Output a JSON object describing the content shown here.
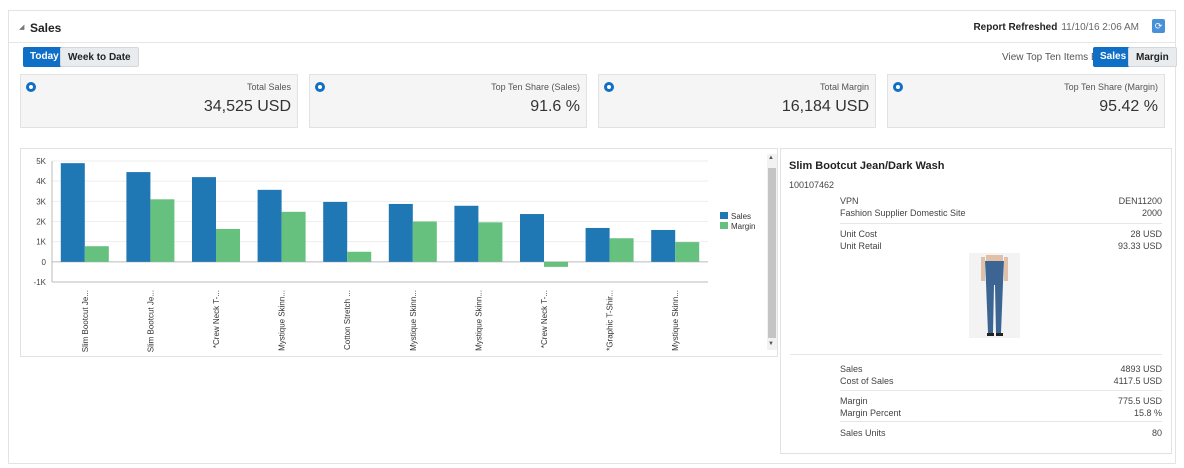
{
  "header": {
    "title": "Sales",
    "refreshed_label": "Report Refreshed",
    "refreshed_time": "11/10/16 2:06 AM",
    "refresh_icon": "refresh-icon"
  },
  "period": {
    "today": "Today",
    "week": "Week to Date",
    "selected": "Today"
  },
  "view_by": {
    "label": "View Top Ten Items By",
    "sales": "Sales",
    "margin": "Margin",
    "selected": "Sales"
  },
  "tiles": [
    {
      "label": "Total Sales",
      "value": "34,525 USD"
    },
    {
      "label": "Top Ten Share (Sales)",
      "value": "91.6 %"
    },
    {
      "label": "Total Margin",
      "value": "16,184 USD"
    },
    {
      "label": "Top Ten Share (Margin)",
      "value": "95.42 %"
    }
  ],
  "chart_data": {
    "type": "bar",
    "categories": [
      "Slim Bootcut Je...",
      "Slim Bootcut Je...",
      "*Crew Neck T-...",
      "Mystique Skinn...",
      "Cotton Stretch ...",
      "Mystique Skinn...",
      "Mystique Skinn...",
      "*Crew Neck T-...",
      "*Graphic T-Shir...",
      "Mystique Skinn..."
    ],
    "series": [
      {
        "name": "Sales",
        "color": "#1f77b4",
        "values": [
          4893,
          4450,
          4200,
          3570,
          2970,
          2870,
          2780,
          2370,
          1680,
          1580
        ]
      },
      {
        "name": "Margin",
        "color": "#66c17e",
        "values": [
          775.5,
          3100,
          1630,
          2480,
          500,
          2000,
          1960,
          -250,
          1170,
          980
        ]
      }
    ],
    "ylim": [
      -1000,
      5000
    ],
    "yticks": [
      "5K",
      "4K",
      "3K",
      "2K",
      "1K",
      "0",
      "-1K"
    ],
    "grid": true,
    "legend": "right"
  },
  "detail": {
    "title": "Slim Bootcut Jean/Dark Wash",
    "id": "100107462",
    "rows": [
      {
        "k": "VPN",
        "v": "DEN11200"
      },
      {
        "k": "Fashion Supplier Domestic Site",
        "v": "2000"
      },
      {
        "k": "Unit Cost",
        "v": "28 USD"
      },
      {
        "k": "Unit Retail",
        "v": "93.33 USD"
      },
      {
        "k": "Sales",
        "v": "4893 USD"
      },
      {
        "k": "Cost of Sales",
        "v": "4117.5 USD"
      },
      {
        "k": "Margin",
        "v": "775.5 USD"
      },
      {
        "k": "Margin Percent",
        "v": "15.8 %"
      },
      {
        "k": "Sales Units",
        "v": "80"
      }
    ]
  }
}
